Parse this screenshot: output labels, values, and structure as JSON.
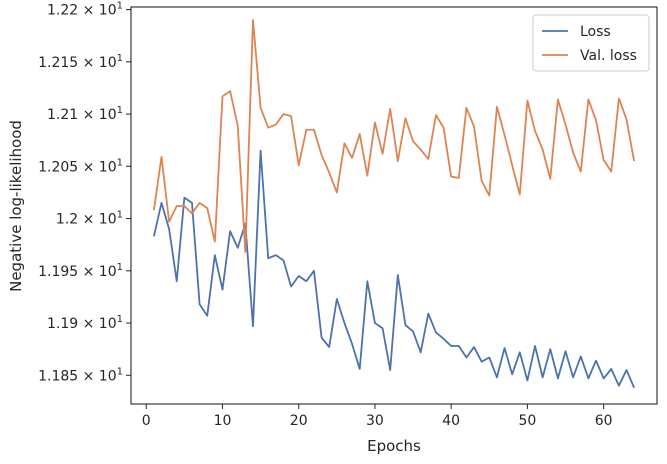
{
  "chart_data": {
    "type": "line",
    "xlabel": "Epochs",
    "ylabel": "Negative log-likelihood",
    "xlim": [
      -2,
      67
    ],
    "ylim": [
      11.8225,
      12.2025
    ],
    "xticks": [
      0,
      10,
      20,
      30,
      40,
      50,
      60
    ],
    "yticks": [
      {
        "value": 11.85,
        "mantissa": "1.185",
        "base": "10",
        "exponent": "1"
      },
      {
        "value": 11.9,
        "mantissa": "1.19",
        "base": "10",
        "exponent": "1"
      },
      {
        "value": 11.95,
        "mantissa": "1.195",
        "base": "10",
        "exponent": "1"
      },
      {
        "value": 12.0,
        "mantissa": "1.2",
        "base": "10",
        "exponent": "1"
      },
      {
        "value": 12.05,
        "mantissa": "1.205",
        "base": "10",
        "exponent": "1"
      },
      {
        "value": 12.1,
        "mantissa": "1.21",
        "base": "10",
        "exponent": "1"
      },
      {
        "value": 12.15,
        "mantissa": "1.215",
        "base": "10",
        "exponent": "1"
      },
      {
        "value": 12.2,
        "mantissa": "1.22",
        "base": "10",
        "exponent": "1"
      }
    ],
    "grid": false,
    "legend_position": "top-right",
    "x": [
      1,
      2,
      3,
      4,
      5,
      6,
      7,
      8,
      9,
      10,
      11,
      12,
      13,
      14,
      15,
      16,
      17,
      18,
      19,
      20,
      21,
      22,
      23,
      24,
      25,
      26,
      27,
      28,
      29,
      30,
      31,
      32,
      33,
      34,
      35,
      36,
      37,
      38,
      39,
      40,
      41,
      42,
      43,
      44,
      45,
      46,
      47,
      48,
      49,
      50,
      51,
      52,
      53,
      54,
      55,
      56,
      57,
      58,
      59,
      60,
      61,
      62,
      63,
      64
    ],
    "series": [
      {
        "name": "Loss",
        "color": "#4c72b0",
        "values": [
          11.983,
          12.015,
          11.99,
          11.94,
          12.02,
          12.015,
          11.918,
          11.907,
          11.965,
          11.932,
          11.988,
          11.972,
          11.995,
          11.897,
          12.065,
          11.962,
          11.965,
          11.96,
          11.935,
          11.945,
          11.94,
          11.95,
          11.886,
          11.877,
          11.923,
          11.9,
          11.88,
          11.856,
          11.94,
          11.9,
          11.895,
          11.855,
          11.946,
          11.898,
          11.892,
          11.872,
          11.909,
          11.891,
          11.885,
          11.878,
          11.878,
          11.867,
          11.877,
          11.863,
          11.867,
          11.848,
          11.876,
          11.851,
          11.872,
          11.845,
          11.878,
          11.848,
          11.875,
          11.847,
          11.873,
          11.848,
          11.868,
          11.847,
          11.864,
          11.847,
          11.856,
          11.84,
          11.855,
          11.838
        ]
      },
      {
        "name": "Val. loss",
        "color": "#dd8452",
        "values": [
          12.008,
          12.059,
          11.997,
          12.012,
          12.012,
          12.005,
          12.015,
          12.01,
          11.978,
          12.117,
          12.122,
          12.089,
          11.968,
          12.19,
          12.106,
          12.087,
          12.09,
          12.1,
          12.098,
          12.051,
          12.085,
          12.085,
          12.061,
          12.044,
          12.025,
          12.072,
          12.058,
          12.081,
          12.041,
          12.092,
          12.062,
          12.105,
          12.055,
          12.096,
          12.074,
          12.066,
          12.057,
          12.099,
          12.087,
          12.04,
          12.039,
          12.106,
          12.088,
          12.036,
          12.022,
          12.107,
          12.08,
          12.051,
          12.023,
          12.113,
          12.084,
          12.066,
          12.038,
          12.114,
          12.09,
          12.063,
          12.045,
          12.114,
          12.094,
          12.056,
          12.045,
          12.115,
          12.095,
          12.055
        ]
      }
    ]
  }
}
